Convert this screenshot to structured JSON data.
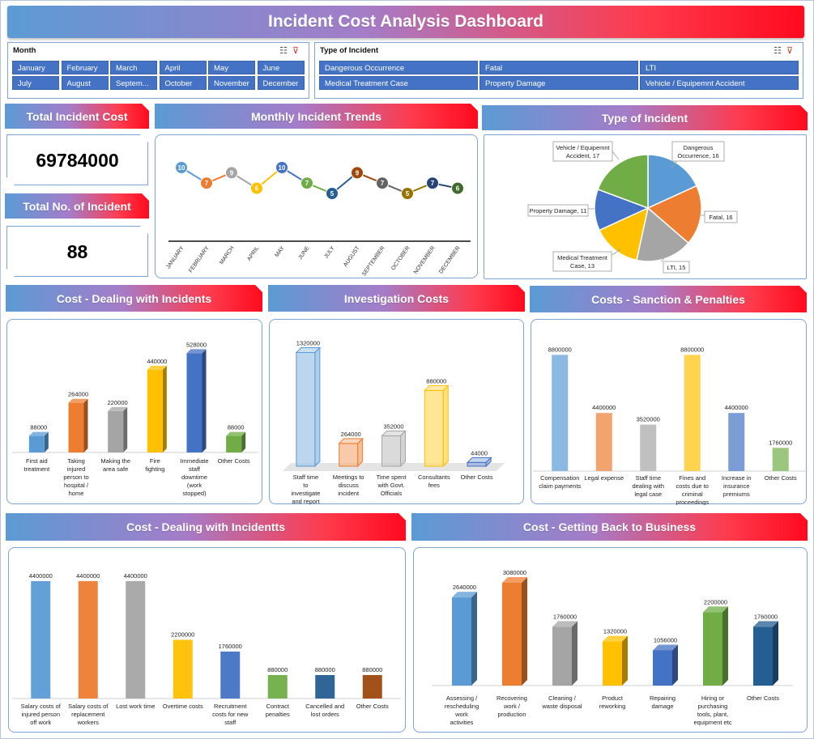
{
  "title": "Incident Cost Analysis Dashboard",
  "slicers": {
    "month": {
      "title": "Month",
      "items": [
        "January",
        "February",
        "March",
        "April",
        "May",
        "June",
        "July",
        "August",
        "Septem...",
        "October",
        "November",
        "December"
      ]
    },
    "type": {
      "title": "Type of Incident",
      "items": [
        "Dangerous Occurrence",
        "Fatal",
        "LTI",
        "Medical Treatment Case",
        "Property Damage",
        "Vehicle / Equipemnt Accident"
      ]
    }
  },
  "kpis": {
    "total_cost": {
      "label": "Total Incident Cost",
      "value": "69784000"
    },
    "total_count": {
      "label": "Total No. of Incident",
      "value": "88"
    }
  },
  "chart_data": [
    {
      "id": "monthly",
      "type": "line",
      "title": "Monthly Incident Trends",
      "categories": [
        "JANUARY",
        "FEBRUARY",
        "MARCH",
        "APRIL",
        "MAY",
        "JUNE",
        "JULY",
        "AUGUST",
        "SEPTEMBER",
        "OCTOBER",
        "NOVEMBER",
        "DECEMBER"
      ],
      "values": [
        10,
        7,
        9,
        6,
        10,
        7,
        5,
        9,
        7,
        5,
        7,
        6
      ],
      "colors": [
        "#5b9bd5",
        "#ed7d31",
        "#a5a5a5",
        "#ffc000",
        "#4472c4",
        "#70ad47",
        "#255e91",
        "#9e480e",
        "#636363",
        "#997300",
        "#264478",
        "#43682b"
      ],
      "ylim": [
        0,
        12
      ]
    },
    {
      "id": "type",
      "type": "pie",
      "title": "Type of Incident",
      "slices": [
        {
          "name": "Dangerous Occurrence",
          "value": 16,
          "color": "#5b9bd5"
        },
        {
          "name": "Fatal",
          "value": 16,
          "color": "#ed7d31"
        },
        {
          "name": "LTI",
          "value": 15,
          "color": "#a5a5a5"
        },
        {
          "name": "Medical Treatment Case",
          "value": 13,
          "color": "#ffc000"
        },
        {
          "name": "Property Damage",
          "value": 11,
          "color": "#4472c4"
        },
        {
          "name": "Vehicle / Equipemnt Accident",
          "value": 17,
          "color": "#70ad47"
        }
      ],
      "labels": [
        "Dangerous Occurrence, 16",
        "Fatal, 16",
        "LTI, 15",
        "Medical Treatment Case, 13",
        "Property Damage, 11",
        "Vehicle / Equipemnt Accident, 17"
      ]
    },
    {
      "id": "dealing1",
      "type": "bar",
      "title": "Cost - Dealing with Incidents",
      "categories": [
        "First aid treatment",
        "Taking injured person to hospital / home",
        "Making the area safe",
        "Fire fighting",
        "Immediate staff downtime (work stopped)",
        "Other Costs"
      ],
      "values": [
        88000,
        264000,
        220000,
        440000,
        528000,
        88000
      ],
      "colors": [
        "#5b9bd5",
        "#ed7d31",
        "#a5a5a5",
        "#ffc000",
        "#4472c4",
        "#70ad47"
      ],
      "ylim": [
        0,
        560000
      ]
    },
    {
      "id": "investigation",
      "type": "bar",
      "title": "Investigation Costs",
      "categories": [
        "Staff time to investigate and report",
        "Meetings to discuss incident",
        "Time spent with Govt. Officials",
        "Consultants fees",
        "Other Costs"
      ],
      "values": [
        1320000,
        264000,
        352000,
        880000,
        44000
      ],
      "colors": [
        "#5b9bd5",
        "#ed7d31",
        "#a5a5a5",
        "#ffc000",
        "#4472c4"
      ],
      "ylim": [
        0,
        1400000
      ]
    },
    {
      "id": "sanction",
      "type": "bar",
      "title": "Costs - Sanction & Penalties",
      "categories": [
        "Compensation claim payments",
        "Legal expense",
        "Staff time dealing with legal case",
        "Fines and costs due to criminal proceedings",
        "Increase in insurance premiums",
        "Other Costs"
      ],
      "values": [
        8800000,
        4400000,
        3520000,
        8800000,
        4400000,
        1760000
      ],
      "colors": [
        "#5b9bd5",
        "#ed7d31",
        "#a5a5a5",
        "#ffc000",
        "#4472c4",
        "#70ad47"
      ],
      "ylim": [
        0,
        9500000
      ]
    },
    {
      "id": "dealing2",
      "type": "bar",
      "title": "Cost - Dealing with Incidentts",
      "categories": [
        "Salary costs of injured person off work",
        "Salary costs of replacement workers",
        "Lost work time",
        "Overtime costs",
        "Recruitment costs for new staff",
        "Contract penalties",
        "Cancelled and lost orders",
        "Other Costs"
      ],
      "values": [
        4400000,
        4400000,
        4400000,
        2200000,
        1760000,
        880000,
        880000,
        880000
      ],
      "colors": [
        "#5b9bd5",
        "#ed7d31",
        "#a5a5a5",
        "#ffc000",
        "#4472c4",
        "#70ad47",
        "#255e91",
        "#9e480e"
      ],
      "ylim": [
        0,
        4700000
      ]
    },
    {
      "id": "business",
      "type": "bar",
      "title": "Cost - Getting Back to Business",
      "categories": [
        "Assessing / rescheduling work activities",
        "Recovering work / production",
        "Cleaning / waste disposal",
        "Product reworking",
        "Repairing damage",
        "Hiring or purchasing tools, plant, equipment etc",
        "Other Costs"
      ],
      "values": [
        2640000,
        3080000,
        1760000,
        1320000,
        1056000,
        2200000,
        1760000
      ],
      "colors": [
        "#5b9bd5",
        "#ed7d31",
        "#a5a5a5",
        "#ffc000",
        "#4472c4",
        "#70ad47",
        "#255e91"
      ],
      "ylim": [
        0,
        3200000
      ]
    }
  ]
}
